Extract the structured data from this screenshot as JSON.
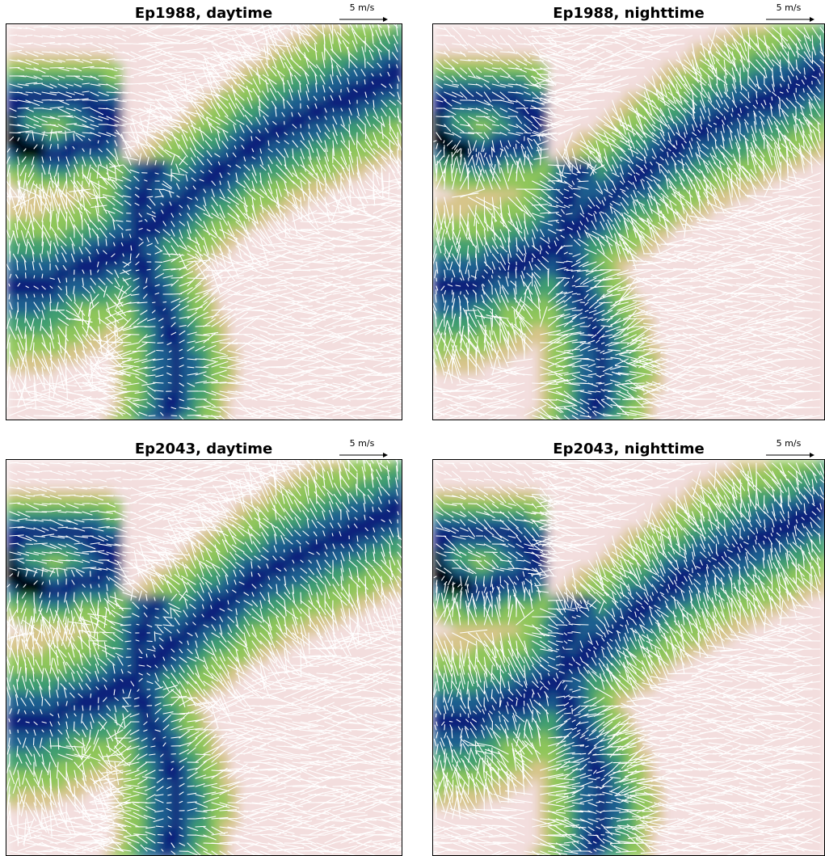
{
  "panels": [
    {
      "title": "Ep1988, daytime",
      "regime": "day",
      "seed": 3,
      "scale_label": "5 m/s"
    },
    {
      "title": "Ep1988, nighttime",
      "regime": "night",
      "seed": 7,
      "scale_label": "5 m/s"
    },
    {
      "title": "Ep2043, daytime",
      "regime": "day",
      "seed": 11,
      "scale_label": "5 m/s"
    },
    {
      "title": "Ep2043, nighttime",
      "regime": "night",
      "seed": 13,
      "scale_label": "5 m/s"
    }
  ],
  "colors": {
    "background": "#ffffff",
    "arrow": "#ffffff",
    "deep_channel": "#000000",
    "valley": "#0b1f7a",
    "low": "#1f5f8f",
    "mid": "#3f9f6f",
    "slope": "#8fc65a",
    "high": "#d7c58a",
    "peak": "#f3dede"
  }
}
